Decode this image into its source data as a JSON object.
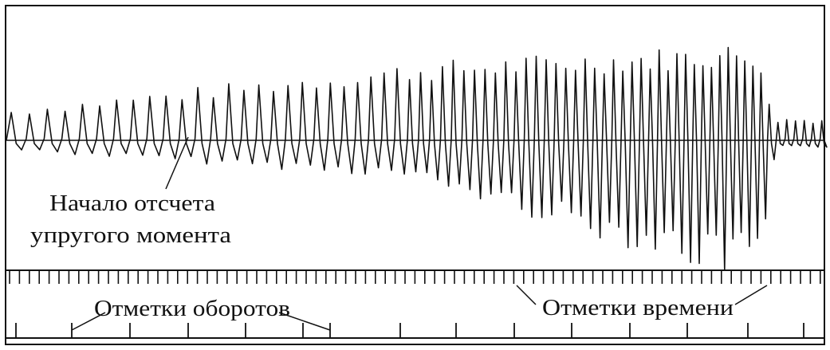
{
  "figure": {
    "labels": {
      "start_line1": "Начало отсчета",
      "start_line2": "упругого момента",
      "revolution_marks": "Отметки оборотов",
      "time_marks": "Отметки времени"
    },
    "colors": {
      "ink": "#111111",
      "background": "#ffffff"
    }
  }
}
